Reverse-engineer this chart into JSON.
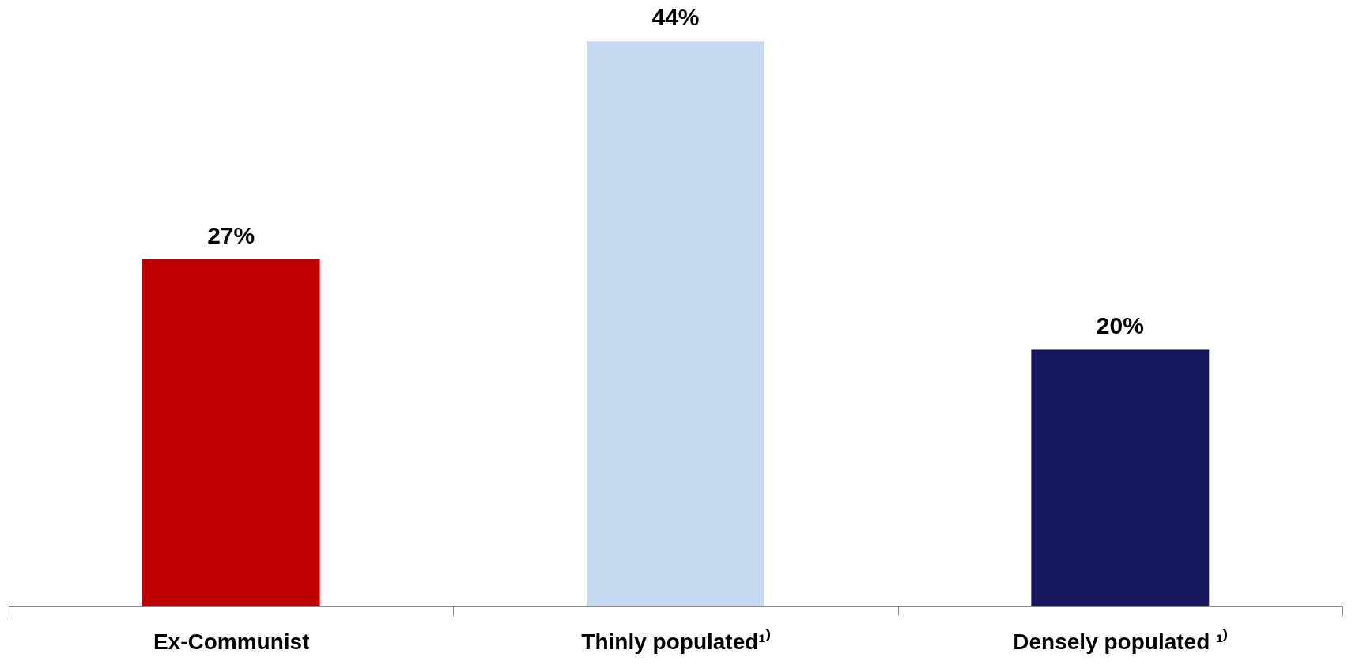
{
  "chart_data": {
    "type": "bar",
    "categories": [
      "Ex-Communist",
      "Thinly populated¹⁾",
      "Densely populated ¹⁾"
    ],
    "values": [
      27,
      44,
      20
    ],
    "colors": [
      "#c00000",
      "#c6d9f0",
      "#17175e"
    ],
    "value_labels": [
      "27%",
      "44%",
      "20%"
    ]
  }
}
